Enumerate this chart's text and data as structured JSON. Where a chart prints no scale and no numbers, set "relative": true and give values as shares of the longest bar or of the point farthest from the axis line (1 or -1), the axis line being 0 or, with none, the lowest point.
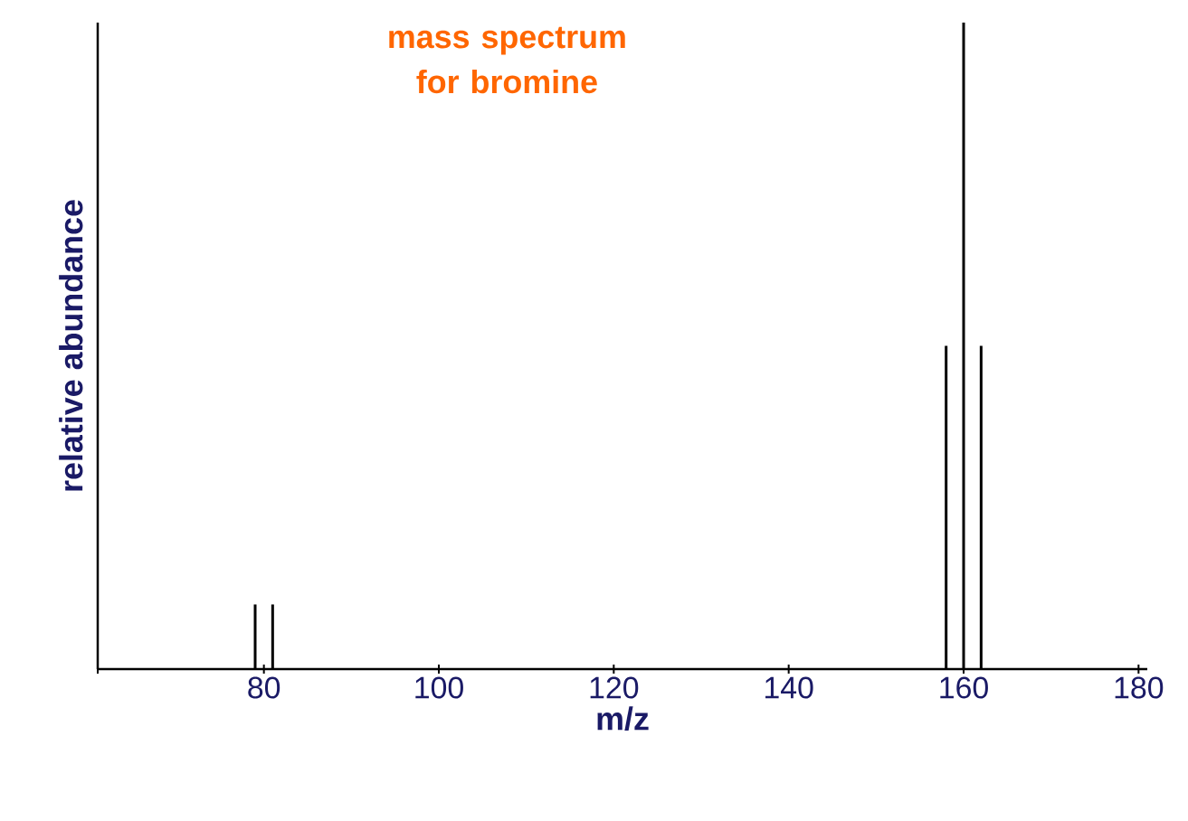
{
  "chart_data": {
    "type": "bar",
    "title": "mass spectrum for bromine",
    "xlabel": "m/z",
    "ylabel": "relative abundance",
    "relative": true,
    "x": [
      79,
      81,
      158,
      160,
      162
    ],
    "values": [
      0.1,
      0.1,
      0.5,
      1,
      0.5
    ],
    "color": "#000000",
    "xlim": [
      61,
      181
    ],
    "xticks": [
      {
        "value": 61,
        "label": null
      },
      80,
      100,
      120,
      140,
      160,
      180
    ],
    "tick_labels": "x"
  }
}
